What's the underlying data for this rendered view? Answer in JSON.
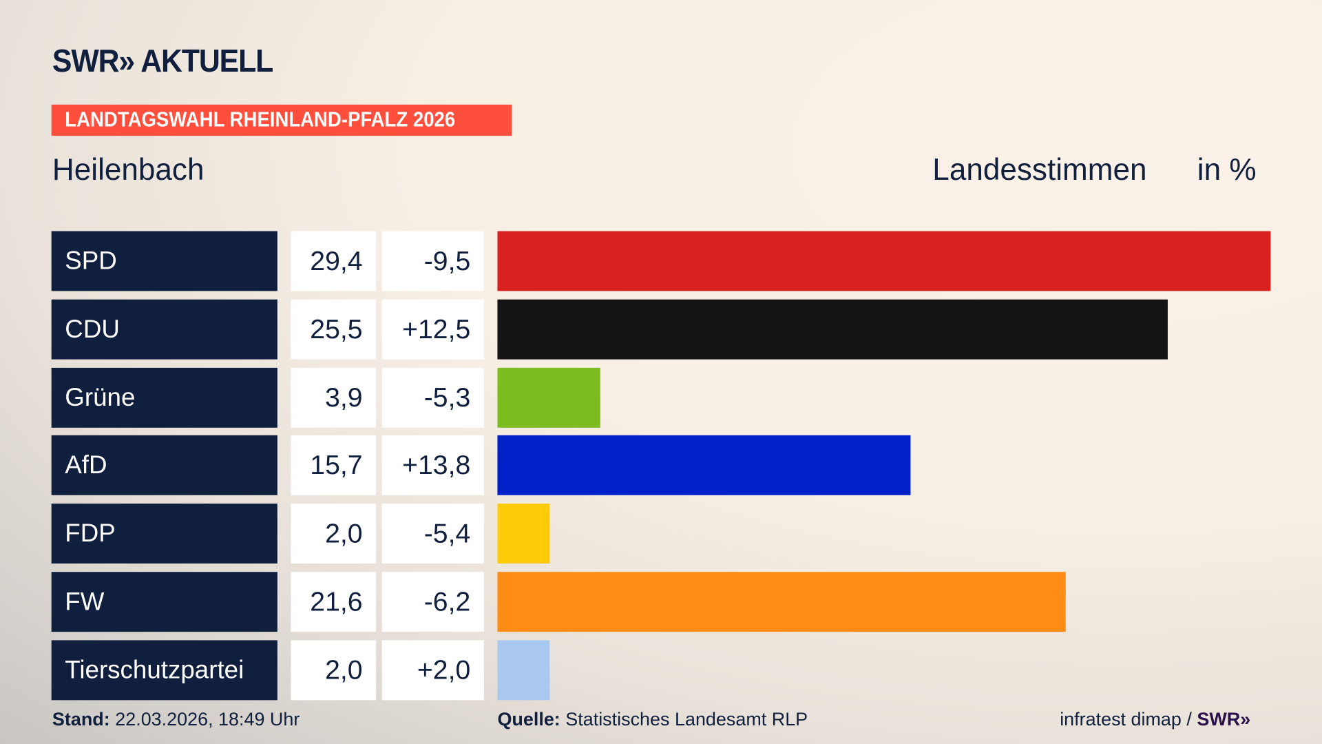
{
  "header": {
    "logo": "SWR» AKTUELL",
    "tag": "LANDTAGSWAHL RHEINLAND-PFALZ 2026",
    "place": "Heilenbach",
    "measure": "Landesstimmen",
    "unit": "in %"
  },
  "chart_data": {
    "type": "bar",
    "orientation": "horizontal",
    "categories": [
      "SPD",
      "CDU",
      "Grüne",
      "AfD",
      "FDP",
      "FW",
      "Tierschutzpartei"
    ],
    "values": [
      29.4,
      25.5,
      3.9,
      15.7,
      2.0,
      21.6,
      2.0
    ],
    "values_text": [
      "29,4",
      "25,5",
      "3,9",
      "15,7",
      "2,0",
      "21,6",
      "2,0"
    ],
    "diff_text": [
      "-9,5",
      "+12,5",
      "-5,3",
      "+13,8",
      "-5,4",
      "-6,2",
      "+2,0"
    ],
    "colors": [
      "#d82020",
      "#141414",
      "#7bbd1e",
      "#0020c8",
      "#ffcc0a",
      "#ff8c17",
      "#a9c8ef"
    ],
    "xlim": [
      0,
      29.4
    ],
    "grid": false
  },
  "footer": {
    "stand_label": "Stand:",
    "stand": "22.03.2026, 18:49 Uhr",
    "source_label": "Quelle:",
    "source": "Statistisches Landesamt RLP",
    "credit": "infratest dimap /",
    "credit_logo": "SWR»"
  }
}
